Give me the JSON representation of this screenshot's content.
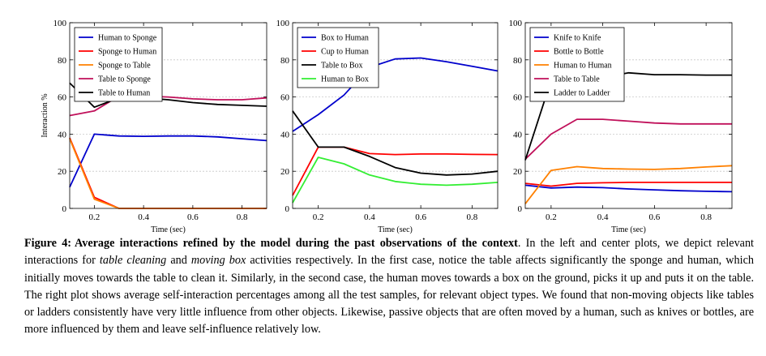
{
  "chart_data": [
    {
      "type": "line",
      "x": [
        0.1,
        0.2,
        0.3,
        0.4,
        0.5,
        0.6,
        0.7,
        0.8,
        0.9
      ],
      "xlabel": "Time (sec)",
      "ylabel": "Interaction %",
      "xlim": [
        0.1,
        0.9
      ],
      "ylim": [
        0,
        100
      ],
      "xticks": [
        "0.2",
        "0.4",
        "0.6",
        "0.8"
      ],
      "yticks": [
        "0",
        "20",
        "40",
        "60",
        "80",
        "100"
      ],
      "grid": "horizontal dashed",
      "legend_position": "top-left",
      "series": [
        {
          "name": "Human to Sponge",
          "color": "#0000cc",
          "values": [
            11.5,
            40,
            39,
            38.8,
            39,
            39,
            38.5,
            37.5,
            36.5
          ]
        },
        {
          "name": "Sponge to Human",
          "color": "#ff0000",
          "values": [
            38,
            6,
            0,
            0,
            0,
            0,
            0,
            0,
            0
          ]
        },
        {
          "name": "Sponge to Table",
          "color": "#ff8000",
          "values": [
            37.5,
            5,
            0,
            0,
            0,
            0,
            0,
            0,
            0
          ]
        },
        {
          "name": "Table to Sponge",
          "color": "#c0105a",
          "values": [
            50,
            52.5,
            60.5,
            60.5,
            60,
            59,
            58.5,
            58.5,
            59.5
          ]
        },
        {
          "name": "Table to Human",
          "color": "#000000",
          "values": [
            67.5,
            54.5,
            59.5,
            59.5,
            58.5,
            57,
            56,
            55.5,
            55
          ]
        }
      ]
    },
    {
      "type": "line",
      "x": [
        0.1,
        0.2,
        0.3,
        0.4,
        0.5,
        0.6,
        0.7,
        0.8,
        0.9
      ],
      "xlabel": "Time (sec)",
      "ylabel": "",
      "xlim": [
        0.1,
        0.9
      ],
      "ylim": [
        0,
        100
      ],
      "xticks": [
        "0.2",
        "0.4",
        "0.6",
        "0.8"
      ],
      "yticks": [
        "0",
        "20",
        "40",
        "60",
        "80",
        "100"
      ],
      "grid": "horizontal dashed",
      "legend_position": "top-left",
      "series": [
        {
          "name": "Box to Human",
          "color": "#0000cc",
          "values": [
            41.5,
            50.5,
            61,
            76,
            80.5,
            81,
            79,
            76.5,
            74
          ]
        },
        {
          "name": "Cup to Human",
          "color": "#ff0000",
          "values": [
            7,
            33,
            33,
            29.5,
            29,
            29.3,
            29.3,
            29.1,
            29
          ]
        },
        {
          "name": "Table to Box",
          "color": "#000000",
          "values": [
            52.5,
            33,
            33,
            28,
            22,
            19,
            18,
            18.5,
            20
          ]
        },
        {
          "name": "Human to Box",
          "color": "#33ee33",
          "values": [
            3,
            27.5,
            24,
            18,
            14.5,
            13,
            12.5,
            13,
            14
          ]
        }
      ]
    },
    {
      "type": "line",
      "x": [
        0.1,
        0.2,
        0.3,
        0.4,
        0.5,
        0.6,
        0.7,
        0.8,
        0.9
      ],
      "xlabel": "Time (sec)",
      "ylabel": "",
      "xlim": [
        0.1,
        0.9
      ],
      "ylim": [
        0,
        100
      ],
      "xticks": [
        "0.2",
        "0.4",
        "0.6",
        "0.8"
      ],
      "yticks": [
        "0",
        "20",
        "40",
        "60",
        "80",
        "100"
      ],
      "grid": "horizontal dashed",
      "legend_position": "top-left",
      "series": [
        {
          "name": "Knife to Knife",
          "color": "#0000cc",
          "values": [
            12.5,
            11,
            11.5,
            11.2,
            10.5,
            10,
            9.5,
            9.2,
            9
          ]
        },
        {
          "name": "Bottle to Bottle",
          "color": "#ff0000",
          "values": [
            13.5,
            12,
            13.5,
            13.8,
            14,
            14,
            14,
            14,
            14
          ]
        },
        {
          "name": "Human to Human",
          "color": "#ff8000",
          "values": [
            2.5,
            20.5,
            22.5,
            21.5,
            21.2,
            21,
            21.5,
            22.3,
            23
          ]
        },
        {
          "name": "Table to Table",
          "color": "#c0105a",
          "values": [
            26.5,
            40,
            48,
            48,
            47,
            46,
            45.5,
            45.5,
            45.5
          ]
        },
        {
          "name": "Ladder to Ladder",
          "color": "#000000",
          "values": [
            26,
            69,
            70.5,
            70.5,
            73,
            72,
            72,
            71.8,
            71.8
          ]
        }
      ]
    }
  ],
  "caption": {
    "lead": "Figure 4:",
    "bold": "Average interactions refined by the model during the past observations of the context",
    "t1": ". In the left and center plots, we depict relevant interactions for ",
    "i1": "table cleaning",
    "t2": " and ",
    "i2": "moving box",
    "t3": " activities respectively. In the first case, notice the table affects significantly the sponge and human, which initially moves towards the table to clean it. Similarly, in the second case, the human moves towards a box on the ground, picks it up and puts it on the table. The right plot shows average self-interaction percentages among all the test samples, for relevant object types. We found that non-moving objects like tables or ladders consistently have very little influence from other objects. Likewise, passive objects that are often moved by a human, such as knives or bottles, are more influenced by them and leave self-influence relatively low."
  }
}
